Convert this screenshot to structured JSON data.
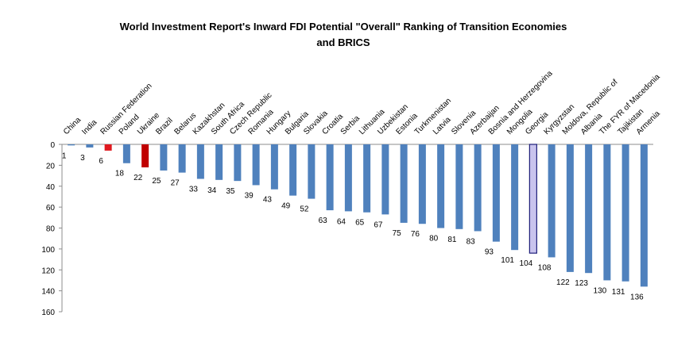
{
  "chart_data": {
    "type": "bar",
    "orientation": "vertical-inverted",
    "title": "World Investment Report's Inward FDI Potential \"Overall\" Ranking of Transition Economies and BRICS",
    "title_lines": [
      "World Investment Report's Inward FDI Potential \"Overall\" Ranking of Transition Economies",
      "and BRICS"
    ],
    "xlabel": "",
    "ylabel": "",
    "ylim": [
      0,
      160
    ],
    "y_reversed": true,
    "yticks": [
      "0",
      "20",
      "40",
      "60",
      "80",
      "100",
      "120",
      "140",
      "160"
    ],
    "grid": false,
    "legend": "none",
    "categories": [
      "China",
      "India",
      "Russian Federation",
      "Poland",
      "Ukraine",
      "Brazil",
      "Belarus",
      "Kazakhstan",
      "South Africa",
      "Czech Republic",
      "Romania",
      "Hungary",
      "Bulgaria",
      "Slovakia",
      "Croatia",
      "Serbia",
      "Lithuania",
      "Uzbekistan",
      "Estonia",
      "Turkmenistan",
      "Latvia",
      "Slovenia",
      "Azerbaijan",
      "Bosnia and Herzegovina",
      "Mongolia",
      "Georgia",
      "Kyrgyzstan",
      "Moldova, Republic of",
      "Albania",
      "The FYR of Macedonia",
      "Tajikistan",
      "Armenia"
    ],
    "values": [
      1,
      3,
      6,
      18,
      22,
      25,
      27,
      33,
      34,
      35,
      39,
      43,
      49,
      52,
      63,
      64,
      65,
      67,
      75,
      76,
      80,
      81,
      83,
      93,
      101,
      104,
      108,
      122,
      123,
      130,
      131,
      136
    ],
    "value_labels": [
      "1",
      "3",
      "6",
      "18",
      "22",
      "25",
      "27",
      "33",
      "34",
      "35",
      "39",
      "43",
      "49",
      "52",
      "63",
      "64",
      "65",
      "67",
      "75",
      "76",
      "80",
      "81",
      "83",
      "93",
      "101",
      "104",
      "108",
      "122",
      "123",
      "130",
      "131",
      "136"
    ],
    "bar_colors": [
      "#4F81BD",
      "#4F81BD",
      "#E0191F",
      "#4F81BD",
      "#C00000",
      "#4F81BD",
      "#4F81BD",
      "#4F81BD",
      "#4F81BD",
      "#4F81BD",
      "#4F81BD",
      "#4F81BD",
      "#4F81BD",
      "#4F81BD",
      "#4F81BD",
      "#4F81BD",
      "#4F81BD",
      "#4F81BD",
      "#4F81BD",
      "#4F81BD",
      "#4F81BD",
      "#4F81BD",
      "#4F81BD",
      "#4F81BD",
      "#4F81BD",
      "#C9C4EE",
      "#4F81BD",
      "#4F81BD",
      "#4F81BD",
      "#4F81BD",
      "#4F81BD",
      "#4F81BD"
    ],
    "highlight_border_color": "#1F1F7A"
  }
}
